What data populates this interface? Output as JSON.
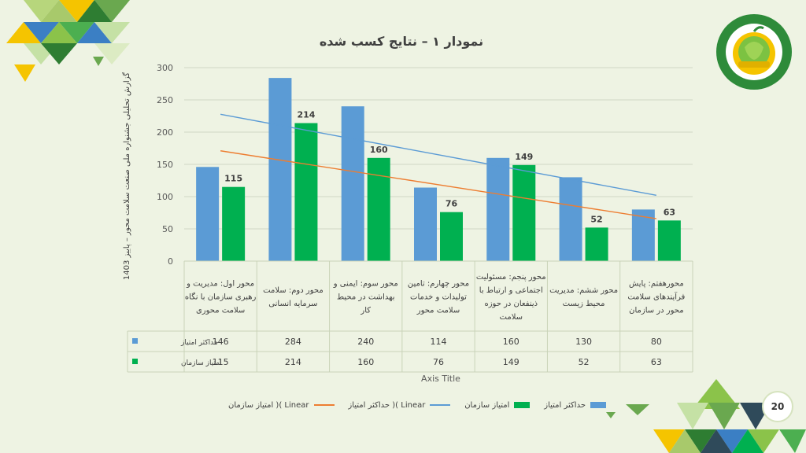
{
  "slide": {
    "page_number": "20"
  },
  "colors": {
    "background": "#eef3e3",
    "max_score": "#5b9bd5",
    "org_score": "#00b050",
    "max_trend": "#5b9bd5",
    "org_trend": "#ed7d31"
  },
  "badge_icon": "national-industry-health-festival-logo",
  "chart_data": {
    "type": "bar",
    "title": "نمودار ۱ – نتایج کسب شده",
    "ylabel": "گزارش تحلیلی جشنواره ملی صنعت سلامت محور – پاییز 1403",
    "xlabel": "Axis Title",
    "ylim": [
      0,
      300
    ],
    "yticks": [
      0,
      50,
      100,
      150,
      200,
      250,
      300
    ],
    "grid": true,
    "legend_position": "bottom",
    "categories": [
      "محور اول: مدیریت و رهبری سازمان با نگاه سلامت محوری",
      "محور دوم: سلامت سرمایه انسانی",
      "محور سوم: ایمنی و بهداشت در محیط کار",
      "محور چهارم: تامین تولیدات و خدمات سلامت محور",
      "محور پنجم: مسئولیت اجتماعی و ارتباط با ذینفعان در حوزه سلامت",
      "محور ششم: مدیریت محیط زیست",
      "محورهفتم: پایش فرآیندهای سلامت محور در سازمان"
    ],
    "category_lines": [
      [
        "محور اول: مدیریت و",
        "رهبری سازمان با نگاه",
        "سلامت محوری"
      ],
      [
        "محور دوم: سلامت",
        "سرمایه انسانی"
      ],
      [
        "محور سوم: ایمنی و",
        "بهداشت در محیط",
        "کار"
      ],
      [
        "محور چهارم: تامین",
        "تولیدات و خدمات",
        "سلامت محور"
      ],
      [
        "محور پنجم: مسئولیت",
        "اجتماعی و ارتباط با",
        "ذینفعان در حوزه",
        "سلامت"
      ],
      [
        "محور ششم: مدیریت",
        "محیط زیست"
      ],
      [
        "محورهفتم: پایش",
        "فرآیندهای سلامت",
        "محور در سازمان"
      ]
    ],
    "series": [
      {
        "name": "حداکثر امتیاز",
        "values": [
          146,
          284,
          240,
          114,
          160,
          130,
          80
        ],
        "show_labels": false
      },
      {
        "name": "امتیاز سازمان",
        "values": [
          115,
          214,
          160,
          76,
          149,
          52,
          63
        ],
        "show_labels": true
      }
    ],
    "trendlines": [
      {
        "series": "حداکثر امتیاز",
        "type": "linear"
      },
      {
        "series": "امتیاز سازمان",
        "type": "linear"
      }
    ],
    "legend": [
      "حداکثر امتیاز",
      "امتیاز سازمان",
      "Linear )( حداکثر امتیاز",
      "Linear )( امتیاز سازمان"
    ],
    "data_table": true
  }
}
